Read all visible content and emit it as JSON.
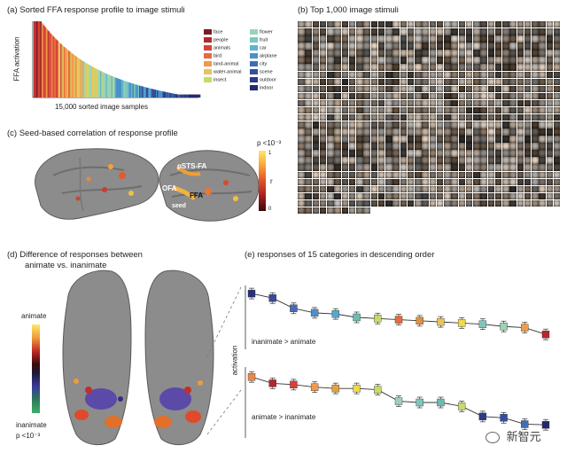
{
  "panel_a": {
    "title": "(a) Sorted FFA response profile to image stimuli",
    "ylabel": "FFA activation",
    "xlabel": "15,000 sorted image samples",
    "legend_left": [
      {
        "label": "face",
        "color": "#7a1b22"
      },
      {
        "label": "people",
        "color": "#b3282e"
      },
      {
        "label": "animals",
        "color": "#d4423a"
      },
      {
        "label": "bird",
        "color": "#e86a3a"
      },
      {
        "label": "land-animal",
        "color": "#f09a4a"
      },
      {
        "label": "water-animal",
        "color": "#e7c55a"
      },
      {
        "label": "insect",
        "color": "#c8d96a"
      }
    ],
    "legend_right": [
      {
        "label": "flower",
        "color": "#9ad3b5"
      },
      {
        "label": "fruit",
        "color": "#7cc7c0"
      },
      {
        "label": "car",
        "color": "#5fb3cf"
      },
      {
        "label": "airplane",
        "color": "#4a92c6"
      },
      {
        "label": "city",
        "color": "#3d6fb3"
      },
      {
        "label": "scene",
        "color": "#344f9c"
      },
      {
        "label": "outdoor",
        "color": "#2d3a86"
      },
      {
        "label": "indoor",
        "color": "#25286e"
      }
    ]
  },
  "panel_b": {
    "title": "(b) Top 1,000 image stimuli"
  },
  "panel_c": {
    "title": "(c) Seed-based correlation of response profile",
    "p_label": "p <10⁻³",
    "r_label": "r",
    "scale_max": "1",
    "scale_min": "0",
    "regions": {
      "psts": "pSTS-FA",
      "ofa": "OFA",
      "ffa": "FFA",
      "seed": "seed"
    }
  },
  "panel_d": {
    "title_line1": "(d)  Difference of responses between",
    "title_line2": "animate vs. inanimate",
    "top_label": "animate",
    "bottom_label": "inanimate",
    "p_label": "p <10⁻³"
  },
  "panel_e": {
    "title": "(e)  responses of 15 categories in descending order",
    "ylabel": "activation",
    "top_note": "inanimate > animate",
    "bottom_note": "animate > inanimate"
  },
  "watermark": "新智元",
  "chart_data": [
    {
      "type": "bar",
      "title": "Sorted FFA response profile to image stimuli",
      "xlabel": "15,000 sorted image samples",
      "ylabel": "FFA activation",
      "note": "sorted bars, colour indicates category; monotonically decreasing profile",
      "values_shape": "decreasing"
    },
    {
      "type": "line",
      "title": "responses of 15 categories in descending order",
      "ylabel": "activation",
      "panel": "inanimate > animate",
      "categories": [
        "c1",
        "c2",
        "c3",
        "c4",
        "c5",
        "c6",
        "c7",
        "c8",
        "c9",
        "c10",
        "c11",
        "c12",
        "c13",
        "c14",
        "c15"
      ],
      "colors": [
        "#2a2f7a",
        "#3a4a9a",
        "#4a6ab3",
        "#4f8fc8",
        "#5aa8c8",
        "#6cbcb0",
        "#c8d96a",
        "#e86a3a",
        "#e09040",
        "#e7c55a",
        "#f0d84a",
        "#7cc7c0",
        "#9ad3b5",
        "#f09a4a",
        "#b3282e"
      ],
      "values": [
        0.92,
        0.84,
        0.66,
        0.58,
        0.56,
        0.5,
        0.48,
        0.46,
        0.44,
        0.42,
        0.4,
        0.38,
        0.34,
        0.32,
        0.2
      ]
    },
    {
      "type": "line",
      "ylabel": "activation",
      "panel": "animate > inanimate",
      "categories": [
        "c1",
        "c2",
        "c3",
        "c4",
        "c5",
        "c6",
        "c7",
        "c8",
        "c9",
        "c10",
        "c11",
        "c12",
        "c13",
        "c14",
        "c15"
      ],
      "colors": [
        "#e88a4a",
        "#b3282e",
        "#d4423a",
        "#f09a4a",
        "#e7a040",
        "#f0d84a",
        "#c8d96a",
        "#9ad3b5",
        "#7cc7c0",
        "#6cbcb0",
        "#c8d96a",
        "#2d3a86",
        "#344f9c",
        "#3d6fb3",
        "#25286e"
      ],
      "values": [
        0.9,
        0.8,
        0.78,
        0.74,
        0.72,
        0.72,
        0.7,
        0.52,
        0.5,
        0.5,
        0.44,
        0.28,
        0.26,
        0.16,
        0.15
      ]
    }
  ]
}
